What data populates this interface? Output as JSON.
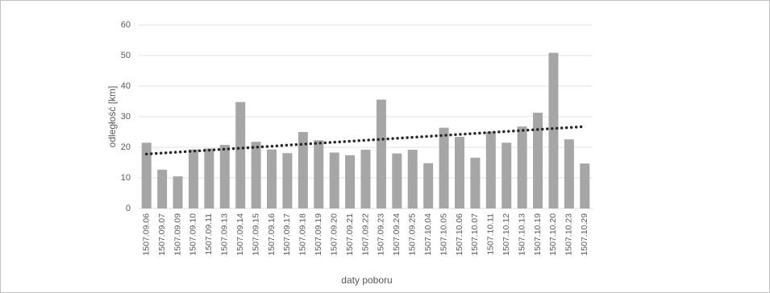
{
  "chart_data": {
    "type": "bar",
    "x_label": "daty poboru",
    "y_label": "odległość [km]",
    "categories": [
      "1507.09.06",
      "1507.09.07",
      "1507.09.09",
      "1507.09.10",
      "1507.09.11",
      "1507.09.13",
      "1507.09.14",
      "1507.09.15",
      "1507.09.16",
      "1507.09.17",
      "1507.09.18",
      "1507.09.19",
      "1507.09.20",
      "1507.09.21",
      "1507.09.22",
      "1507.09.23",
      "1507.09.24",
      "1507.09.25",
      "1507.10.04",
      "1507.10.05",
      "1507.10.06",
      "1507.10.07",
      "1507.10.11",
      "1507.10.12",
      "1507.10.13",
      "1507.10.19",
      "1507.10.20",
      "1507.10.23",
      "1507.10.29"
    ],
    "values": [
      21.5,
      12.7,
      10.5,
      19.3,
      19.6,
      20.8,
      34.8,
      21.8,
      19.3,
      18.1,
      25,
      22.3,
      18.3,
      17.4,
      19.2,
      35.6,
      18,
      19.2,
      14.8,
      26.4,
      23.4,
      16.6,
      25.1,
      21.5,
      26.8,
      31.3,
      50.9,
      22.6,
      14.7
    ],
    "color": "#a6a6a6",
    "trend": [
      17.8,
      26.8
    ],
    "trend_color": "#262626",
    "ylim": [
      0,
      60
    ],
    "yticks": [
      0,
      10,
      20,
      30,
      40,
      50,
      60
    ],
    "grid": true
  }
}
